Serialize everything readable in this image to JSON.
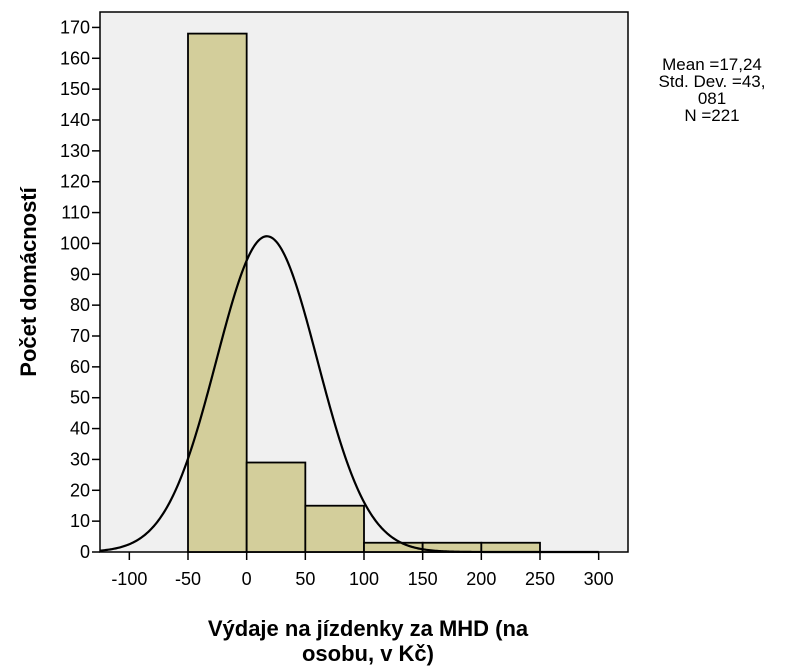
{
  "chart_data": {
    "type": "histogram",
    "xlabel_lines": [
      "Výdaje na jízdenky za MHD (na",
      "osobu, v Kč)"
    ],
    "ylabel": "Počet domácností",
    "xlim": [
      -125,
      325
    ],
    "ylim": [
      0,
      175
    ],
    "x_ticks": [
      -100,
      -50,
      0,
      50,
      100,
      150,
      200,
      250,
      300
    ],
    "x_tick_labels": [
      "-100",
      "-50",
      "0",
      "50",
      "100",
      "150",
      "200",
      "250",
      "300"
    ],
    "y_ticks": [
      0,
      10,
      20,
      30,
      40,
      50,
      60,
      70,
      80,
      90,
      100,
      110,
      120,
      130,
      140,
      150,
      160,
      170
    ],
    "y_tick_labels": [
      "0",
      "10",
      "20",
      "30",
      "40",
      "50",
      "60",
      "70",
      "80",
      "90",
      "100",
      "110",
      "120",
      "130",
      "140",
      "150",
      "160",
      "170"
    ],
    "bins": [
      {
        "from": -50,
        "to": 0,
        "count": 168
      },
      {
        "from": 0,
        "to": 50,
        "count": 29
      },
      {
        "from": 50,
        "to": 100,
        "count": 15
      },
      {
        "from": 100,
        "to": 150,
        "count": 3
      },
      {
        "from": 150,
        "to": 200,
        "count": 3
      },
      {
        "from": 200,
        "to": 250,
        "count": 3
      }
    ],
    "normal_curve": {
      "mean": 17.24,
      "std": 43.081,
      "n": 221,
      "bin_width": 50
    },
    "grid": false,
    "colors": {
      "plot_background": "#f0f0f0",
      "bar_fill": "#d3ce9b",
      "bar_stroke": "#000000",
      "curve": "#000000"
    }
  },
  "stats_box": {
    "lines": [
      "Mean =17,24",
      "Std. Dev. =43,",
      "081",
      "N =221"
    ]
  }
}
